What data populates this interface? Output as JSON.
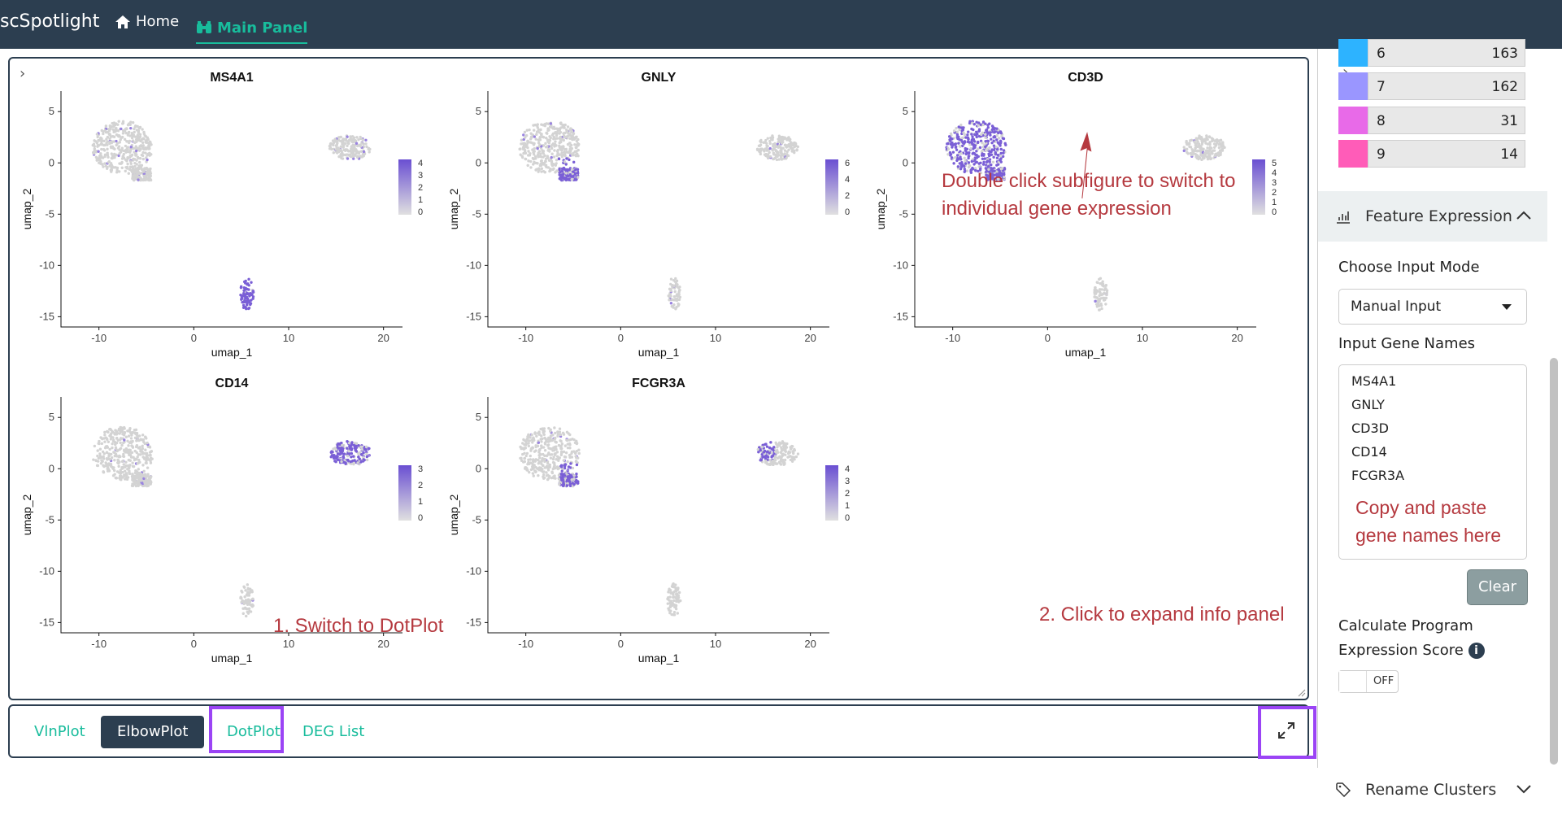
{
  "navbar": {
    "brand": "scSpotlight",
    "home_label": "Home",
    "main_label": "Main Panel",
    "bg_color": "#2c3e50",
    "accent_color": "#18bc9c",
    "home_icon": "home-icon",
    "main_icon": "binoculars-icon"
  },
  "plots": [
    {
      "gene": "MS4A1",
      "legend_ticks": [
        "4",
        "3",
        "2",
        "1",
        "0"
      ]
    },
    {
      "gene": "GNLY",
      "legend_ticks": [
        "6",
        "4",
        "2",
        "0"
      ]
    },
    {
      "gene": "CD3D",
      "legend_ticks": [
        "5",
        "4",
        "3",
        "2",
        "1",
        "0"
      ]
    },
    {
      "gene": "CD14",
      "legend_ticks": [
        "3",
        "2",
        "1",
        "0"
      ]
    },
    {
      "gene": "FCGR3A",
      "legend_ticks": [
        "4",
        "3",
        "2",
        "1",
        "0"
      ]
    }
  ],
  "axes": {
    "xlabel": "umap_1",
    "ylabel": "umap_2",
    "xticks": [
      "-10",
      "0",
      "10",
      "20"
    ],
    "yticks": [
      "5",
      "0",
      "-5",
      "-10",
      "-15"
    ]
  },
  "annotations": {
    "double_click": "Double click subfigure to switch to individual gene expression",
    "double_click_line1": "Double click subfigure to switch to",
    "double_click_line2": "individual gene expression",
    "expand": "2. Click to expand info panel",
    "dotplot": "1. Switch to DotPlot",
    "paste_line1": "Copy and paste",
    "paste_line2": "gene names here",
    "color": "#b5393f"
  },
  "tabs": {
    "vln": "VlnPlot",
    "elbow": "ElbowPlot",
    "dot": "DotPlot",
    "deg": "DEG List",
    "active": "ElbowPlot",
    "highlight_color": "#9b44f5"
  },
  "sidebar": {
    "clusters": [
      {
        "id": "6",
        "count": "163",
        "color": "#2db3ff"
      },
      {
        "id": "7",
        "count": "162",
        "color": "#9a96ff"
      },
      {
        "id": "8",
        "count": "31",
        "color": "#e86ae8"
      },
      {
        "id": "9",
        "count": "14",
        "color": "#ff5cb8"
      }
    ],
    "feature_expression_label": "Feature Expression",
    "choose_mode_label": "Choose Input Mode",
    "mode_value": "Manual Input",
    "input_genes_label": "Input Gene Names",
    "genes": [
      "MS4A1",
      "GNLY",
      "CD3D",
      "CD14",
      "FCGR3A"
    ],
    "clear_label": "Clear",
    "calc_label": "Calculate Program Expression Score",
    "calc_line1": "Calculate Program",
    "calc_line2": "Expression Score",
    "toggle_label": "OFF",
    "rename_clusters_label": "Rename Clusters"
  }
}
